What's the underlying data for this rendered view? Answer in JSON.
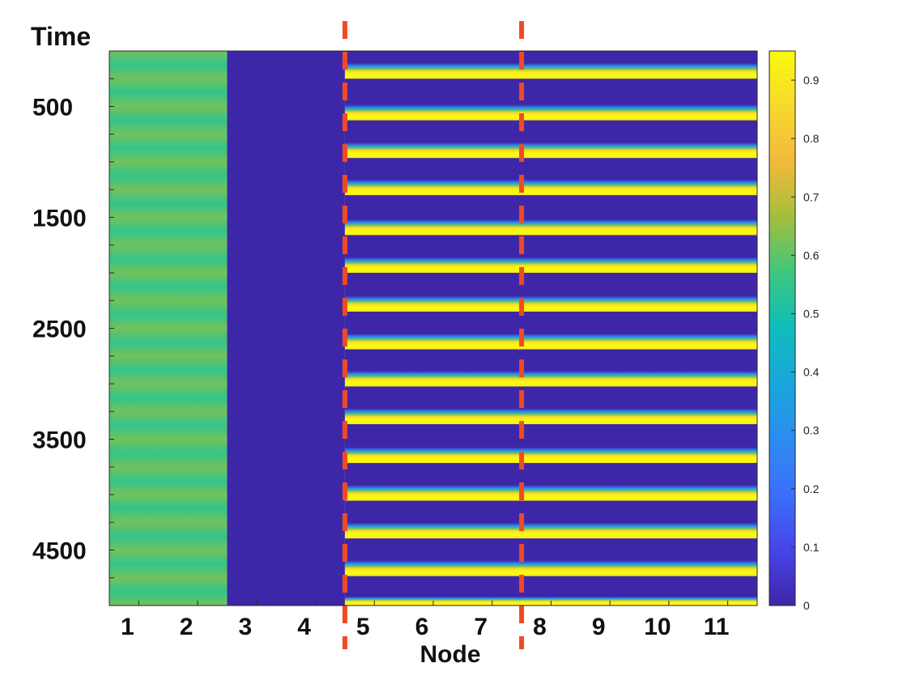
{
  "chart_data": {
    "type": "heatmap",
    "title": "",
    "xlabel": "Node",
    "ylabel": "Time",
    "x_categories": [
      1,
      2,
      3,
      4,
      5,
      6,
      7,
      8,
      9,
      10,
      11
    ],
    "xlim": [
      0.5,
      11.5
    ],
    "ylim": [
      0,
      5000
    ],
    "y_direction": "reversed",
    "y_ticks": [
      500,
      1500,
      2500,
      3500,
      4500
    ],
    "y_tick_labels": [
      "500",
      "1500",
      "2500",
      "3500",
      "4500"
    ],
    "colormap": "parula",
    "colorbar": {
      "range": [
        0,
        0.95
      ],
      "ticks": [
        0,
        0.1,
        0.2,
        0.3,
        0.4,
        0.5,
        0.6,
        0.7,
        0.8,
        0.9
      ],
      "tick_labels": [
        "0",
        "0.1",
        "0.2",
        "0.3",
        "0.4",
        "0.5",
        "0.6",
        "0.7",
        "0.8",
        "0.9"
      ],
      "placement": "right"
    },
    "node_groups": [
      {
        "nodes": [
          1,
          2
        ],
        "pattern": "slow oscillation",
        "value_range": [
          0.55,
          0.62
        ],
        "period": 250
      },
      {
        "nodes": [
          3,
          4
        ],
        "pattern": "constant",
        "value": 0.0
      },
      {
        "nodes": [
          5,
          6,
          7,
          8,
          9,
          10,
          11
        ],
        "pattern": "periodic pulses",
        "baseline": 0.0,
        "peak": 0.95
      }
    ],
    "pulse_centers": [
      180,
      555,
      895,
      1230,
      1590,
      1930,
      2280,
      2620,
      2955,
      3295,
      3645,
      3985,
      4325,
      4665,
      4990
    ],
    "vertical_reference_lines": [
      {
        "x": 4.5,
        "style": "dashed",
        "color": "#f04a23"
      },
      {
        "x": 7.5,
        "style": "dashed",
        "color": "#f04a23"
      }
    ]
  }
}
